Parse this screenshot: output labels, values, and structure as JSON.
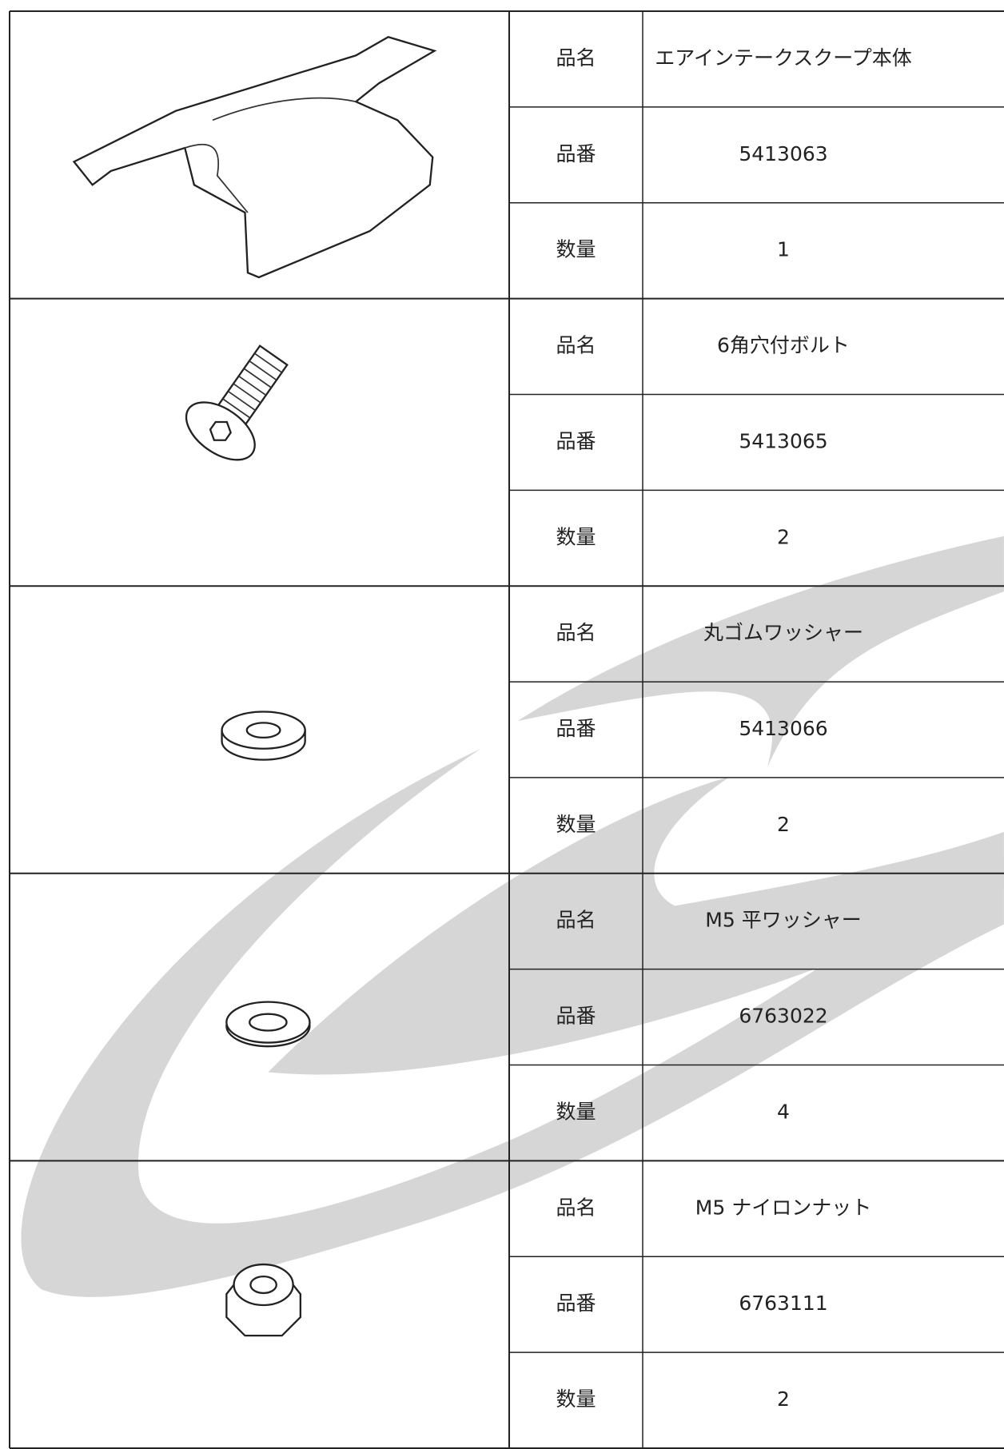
{
  "items": [
    {
      "rows": [
        {
          "label": "品名",
          "value": "エアインテークスクープ本体"
        },
        {
          "label": "品番",
          "value": "5413063"
        },
        {
          "label": "数量",
          "value": "1"
        }
      ]
    },
    {
      "rows": [
        {
          "label": "品名",
          "value": "6角穴付ボルト"
        },
        {
          "label": "品番",
          "value": "5413065"
        },
        {
          "label": "数量",
          "value": "2"
        }
      ]
    },
    {
      "rows": [
        {
          "label": "品名",
          "value": "丸ゴムワッシャー"
        },
        {
          "label": "品番",
          "value": "5413066"
        },
        {
          "label": "数量",
          "value": "2"
        }
      ]
    },
    {
      "rows": [
        {
          "label": "品名",
          "value": "M5 平ワッシャー"
        },
        {
          "label": "品番",
          "value": "6763022"
        },
        {
          "label": "数量",
          "value": "4"
        }
      ]
    },
    {
      "rows": [
        {
          "label": "品名",
          "value": "M5 ナイロンナット"
        },
        {
          "label": "品番",
          "value": "6763111"
        },
        {
          "label": "数量",
          "value": "2"
        }
      ]
    }
  ]
}
